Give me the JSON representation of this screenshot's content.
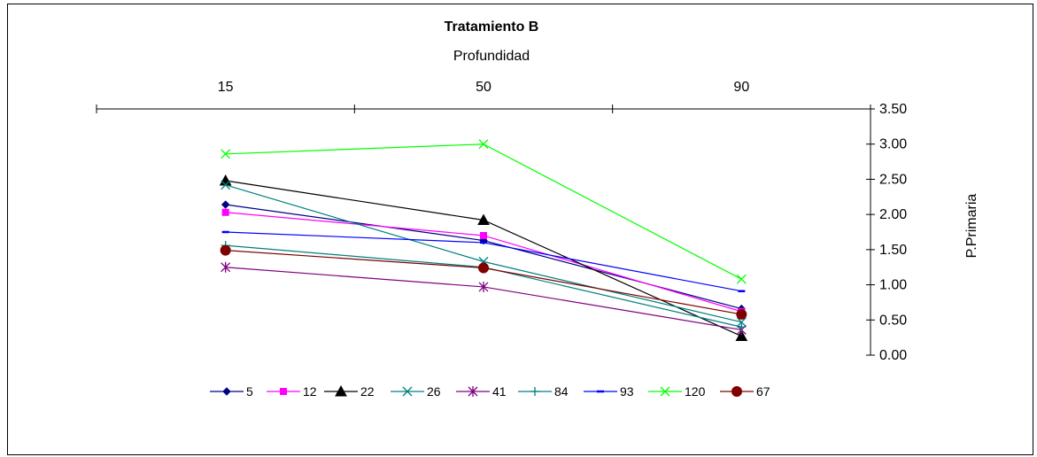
{
  "chart_data": {
    "type": "line",
    "title": "Tratamiento B",
    "xlabel": "Profundidad",
    "ylabel": "P.Primaria",
    "categories": [
      "15",
      "50",
      "90"
    ],
    "ylim": [
      0,
      3.5
    ],
    "yticks": [
      "0.00",
      "0.50",
      "1.00",
      "1.50",
      "2.00",
      "2.50",
      "3.00",
      "3.50"
    ],
    "x_axis_position": "top",
    "y_axis_position": "right",
    "grid": false,
    "legend_position": "bottom",
    "series": [
      {
        "name": "5",
        "values": [
          2.14,
          1.63,
          0.66
        ],
        "color": "#000080",
        "marker": "diamond"
      },
      {
        "name": "12",
        "values": [
          2.03,
          1.7,
          0.62
        ],
        "color": "#ff00ff",
        "marker": "square"
      },
      {
        "name": "22",
        "values": [
          2.48,
          1.92,
          0.27
        ],
        "color": "#000000",
        "marker": "triangle"
      },
      {
        "name": "26",
        "values": [
          2.42,
          1.33,
          0.47
        ],
        "color": "#008080",
        "marker": "x"
      },
      {
        "name": "41",
        "values": [
          1.25,
          0.97,
          0.36
        ],
        "color": "#800080",
        "marker": "star"
      },
      {
        "name": "84",
        "values": [
          1.56,
          1.25,
          0.4
        ],
        "color": "#008080",
        "marker": "plus"
      },
      {
        "name": "93",
        "values": [
          1.75,
          1.6,
          0.91
        ],
        "color": "#0000ff",
        "marker": "dash"
      },
      {
        "name": "120",
        "values": [
          2.86,
          3.0,
          1.08
        ],
        "color": "#00ff00",
        "marker": "x"
      },
      {
        "name": "67",
        "values": [
          1.49,
          1.24,
          0.58
        ],
        "color": "#800000",
        "marker": "circle"
      }
    ]
  }
}
